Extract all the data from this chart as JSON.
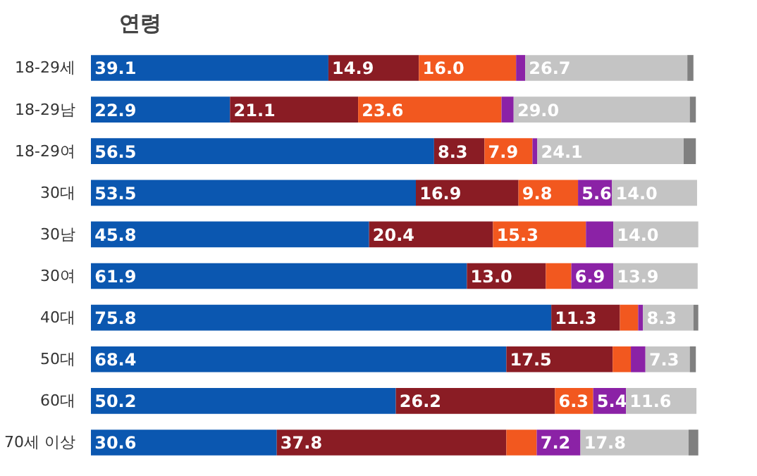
{
  "chart_data": {
    "type": "bar",
    "orientation": "horizontal",
    "stacked": true,
    "title": "연령",
    "tick_labels": "y",
    "grid": false,
    "categories": [
      "18-29세",
      "18-29남",
      "18-29여",
      "30대",
      "30남",
      "30여",
      "40대",
      "50대",
      "60대",
      "70세 이상"
    ],
    "series": [
      {
        "color": "#0b57b0",
        "values": [
          39.1,
          22.9,
          56.5,
          53.5,
          45.8,
          61.9,
          75.8,
          68.4,
          50.2,
          30.6
        ],
        "value_labels": [
          "39.1",
          "22.9",
          "56.5",
          "53.5",
          "45.8",
          "61.9",
          "75.8",
          "68.4",
          "50.2",
          "30.6"
        ]
      },
      {
        "color": "#8a1c24",
        "values": [
          14.9,
          21.1,
          8.3,
          16.9,
          20.4,
          13.0,
          11.3,
          17.5,
          26.2,
          37.8
        ],
        "value_labels": [
          "14.9",
          "21.1",
          "8.3",
          "16.9",
          "20.4",
          "13.0",
          "11.3",
          "17.5",
          "26.2",
          "37.8"
        ]
      },
      {
        "color": "#f2581f",
        "values": [
          16.0,
          23.6,
          7.9,
          9.8,
          15.3,
          4.2,
          3.0,
          3.0,
          6.3,
          5.0
        ],
        "value_labels": [
          "16.0",
          "23.6",
          "7.9",
          "9.8",
          "15.3",
          null,
          null,
          null,
          "6.3",
          null
        ]
      },
      {
        "color": "#8b22a6",
        "values": [
          1.5,
          2.0,
          0.8,
          5.6,
          4.5,
          6.9,
          0.8,
          2.4,
          5.4,
          7.2
        ],
        "value_labels": [
          null,
          null,
          null,
          "5.6",
          null,
          "6.9",
          null,
          null,
          "5.4",
          "7.2"
        ]
      },
      {
        "color": "#c4c4c4",
        "values": [
          26.7,
          29.0,
          24.1,
          14.0,
          14.0,
          13.9,
          8.3,
          7.3,
          11.6,
          17.8
        ],
        "value_labels": [
          "26.7",
          "29.0",
          "24.1",
          "14.0",
          "14.0",
          "13.9",
          "8.3",
          "7.3",
          "11.6",
          "17.8"
        ]
      },
      {
        "color": "#808080",
        "values": [
          1.0,
          1.0,
          2.0,
          0,
          0,
          0,
          0.8,
          1.0,
          0,
          1.6
        ],
        "value_labels": [
          null,
          null,
          null,
          null,
          null,
          null,
          null,
          null,
          null,
          null
        ]
      }
    ]
  }
}
